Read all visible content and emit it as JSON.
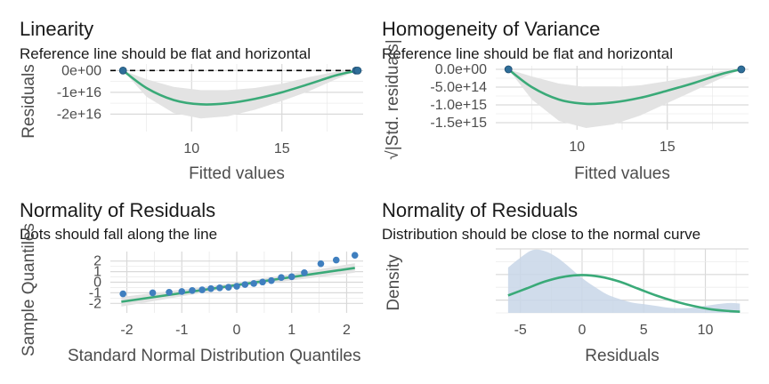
{
  "colors": {
    "curve": "#3aaa78",
    "band": "#e3e3e3",
    "points": "#2f6e99",
    "qq_points": "#3f7fbf",
    "density_fill": "#c8d6e8",
    "reference": "#000000"
  },
  "chart_data": [
    {
      "type": "scatter",
      "panel": "linearity",
      "title": "Linearity",
      "subtitle": "Reference line should be flat and horizontal",
      "xlabel": "Fitted values",
      "ylabel": "Residuals",
      "xlim": [
        5.5,
        19.5
      ],
      "ylim": [
        -2.8e+16,
        3000000000000000.0
      ],
      "x_ticks": [
        10,
        15
      ],
      "x_tick_labels": [
        "10",
        "15"
      ],
      "y_ticks": [
        0,
        -1e+16,
        -2e+16
      ],
      "y_tick_labels": [
        "0e+00",
        "-1e+16",
        "-2e+16"
      ],
      "reference_line": 0,
      "points": [
        {
          "x": 6.2,
          "y": 0
        },
        {
          "x": 19.1,
          "y": 0
        },
        {
          "x": 19.2,
          "y": 0
        }
      ],
      "smooth": [
        {
          "x": 6.2,
          "y": 0
        },
        {
          "x": 7.5,
          "y": -8000000000000000.0
        },
        {
          "x": 9.0,
          "y": -1.35e+16
        },
        {
          "x": 10.5,
          "y": -1.55e+16
        },
        {
          "x": 12.0,
          "y": -1.5e+16
        },
        {
          "x": 13.5,
          "y": -1.3e+16
        },
        {
          "x": 15.0,
          "y": -1e+16
        },
        {
          "x": 16.5,
          "y": -6200000000000000.0
        },
        {
          "x": 18.0,
          "y": -2200000000000000.0
        },
        {
          "x": 19.2,
          "y": 0
        }
      ],
      "band": [
        {
          "x": 6.2,
          "lo": 0,
          "hi": 0
        },
        {
          "x": 7.5,
          "lo": -1.2e+16,
          "hi": -4000000000000000.0
        },
        {
          "x": 9.0,
          "lo": -1.95e+16,
          "hi": -7500000000000000.0
        },
        {
          "x": 10.5,
          "lo": -2.2e+16,
          "hi": -9000000000000000.0
        },
        {
          "x": 12.0,
          "lo": -2.1e+16,
          "hi": -9000000000000000.0
        },
        {
          "x": 13.5,
          "lo": -1.8e+16,
          "hi": -8000000000000000.0
        },
        {
          "x": 15.0,
          "lo": -1.4e+16,
          "hi": -6000000000000000.0
        },
        {
          "x": 16.5,
          "lo": -9500000000000000.0,
          "hi": -3000000000000000.0
        },
        {
          "x": 18.0,
          "lo": -4000000000000000.0,
          "hi": -500000000000000.0
        },
        {
          "x": 19.2,
          "lo": 0,
          "hi": 0
        }
      ]
    },
    {
      "type": "scatter",
      "panel": "homogeneity",
      "title": "Homogeneity of Variance",
      "subtitle": "Reference line should be flat and horizontal",
      "xlabel": "Fitted values",
      "ylabel": "√|Std. residuals|",
      "xlim": [
        5.5,
        19.5
      ],
      "ylim": [
        -1700000000000000.0,
        100000000000000.0
      ],
      "x_ticks": [
        10,
        15
      ],
      "x_tick_labels": [
        "10",
        "15"
      ],
      "y_ticks": [
        0,
        -500000000000000.0,
        -1000000000000000.0,
        -1500000000000000.0
      ],
      "y_tick_labels": [
        "0.0e+00",
        "-5.0e+14",
        "-1.0e+15",
        "-1.5e+15"
      ],
      "points": [
        {
          "x": 6.2,
          "y": 0
        },
        {
          "x": 19.1,
          "y": 0
        }
      ],
      "smooth": [
        {
          "x": 6.2,
          "y": 0
        },
        {
          "x": 7.5,
          "y": -500000000000000.0
        },
        {
          "x": 9.0,
          "y": -850000000000000.0
        },
        {
          "x": 10.5,
          "y": -970000000000000.0
        },
        {
          "x": 12.0,
          "y": -930000000000000.0
        },
        {
          "x": 13.5,
          "y": -800000000000000.0
        },
        {
          "x": 15.0,
          "y": -600000000000000.0
        },
        {
          "x": 16.5,
          "y": -380000000000000.0
        },
        {
          "x": 18.0,
          "y": -130000000000000.0
        },
        {
          "x": 19.1,
          "y": 0
        }
      ],
      "band": [
        {
          "x": 6.2,
          "lo": 0,
          "hi": 0
        },
        {
          "x": 7.5,
          "lo": -850000000000000.0,
          "hi": -200000000000000.0
        },
        {
          "x": 9.0,
          "lo": -1450000000000000.0,
          "hi": -400000000000000.0
        },
        {
          "x": 10.5,
          "lo": -1650000000000000.0,
          "hi": -500000000000000.0
        },
        {
          "x": 12.0,
          "lo": -1550000000000000.0,
          "hi": -500000000000000.0
        },
        {
          "x": 13.5,
          "lo": -1300000000000000.0,
          "hi": -450000000000000.0
        },
        {
          "x": 15.0,
          "lo": -950000000000000.0,
          "hi": -330000000000000.0
        },
        {
          "x": 16.5,
          "lo": -600000000000000.0,
          "hi": -200000000000000.0
        },
        {
          "x": 18.0,
          "lo": -250000000000000.0,
          "hi": -50000000000000.0
        },
        {
          "x": 19.1,
          "lo": 0,
          "hi": 0
        }
      ]
    },
    {
      "type": "scatter",
      "panel": "qq",
      "title": "Normality of Residuals",
      "subtitle": "Dots should fall along the line",
      "xlabel": "Standard Normal Distribution Quantiles",
      "ylabel": "Sample Quantiles",
      "xlim": [
        -2.3,
        2.3
      ],
      "ylim": [
        -2.9,
        2.9
      ],
      "x_ticks": [
        -2,
        -1,
        0,
        1,
        2
      ],
      "x_tick_labels": [
        "-2",
        "-1",
        "0",
        "1",
        "2"
      ],
      "y_ticks": [
        2,
        1,
        0,
        -1,
        -2
      ],
      "y_tick_labels": [
        "2",
        "1",
        "0",
        "-1",
        "-2"
      ],
      "points": [
        {
          "x": -2.07,
          "y": -1.1
        },
        {
          "x": -1.53,
          "y": -1.0
        },
        {
          "x": -1.23,
          "y": -0.95
        },
        {
          "x": -1.0,
          "y": -0.88
        },
        {
          "x": -0.81,
          "y": -0.78
        },
        {
          "x": -0.63,
          "y": -0.72
        },
        {
          "x": -0.47,
          "y": -0.6
        },
        {
          "x": -0.31,
          "y": -0.53
        },
        {
          "x": -0.15,
          "y": -0.48
        },
        {
          "x": 0.0,
          "y": -0.38
        },
        {
          "x": 0.15,
          "y": -0.22
        },
        {
          "x": 0.31,
          "y": -0.12
        },
        {
          "x": 0.47,
          "y": 0.02
        },
        {
          "x": 0.63,
          "y": 0.15
        },
        {
          "x": 0.81,
          "y": 0.45
        },
        {
          "x": 1.0,
          "y": 0.52
        },
        {
          "x": 1.23,
          "y": 0.9
        },
        {
          "x": 1.53,
          "y": 1.75
        },
        {
          "x": 1.81,
          "y": 2.1
        },
        {
          "x": 2.15,
          "y": 2.55
        }
      ],
      "line": [
        {
          "x": -2.1,
          "y": -1.85
        },
        {
          "x": 2.15,
          "y": 1.35
        }
      ],
      "band": [
        {
          "x": -2.1,
          "lo": -2.3,
          "hi": -1.4
        },
        {
          "x": 0,
          "lo": -0.45,
          "hi": -0.05
        },
        {
          "x": 2.15,
          "lo": 0.9,
          "hi": 1.8
        }
      ]
    },
    {
      "type": "area",
      "panel": "density",
      "title": "Normality of Residuals",
      "subtitle": "Distribution should be close to the normal curve",
      "xlabel": "Residuals",
      "ylabel": "Density",
      "xlim": [
        -7,
        13.5
      ],
      "ylim": [
        0,
        0.11
      ],
      "x_ticks": [
        -5,
        0,
        5,
        10
      ],
      "x_tick_labels": [
        "-5",
        "0",
        "5",
        "10"
      ],
      "empirical_density": [
        {
          "x": -6,
          "y": 0.078
        },
        {
          "x": -5,
          "y": 0.095
        },
        {
          "x": -4,
          "y": 0.108
        },
        {
          "x": -3,
          "y": 0.106
        },
        {
          "x": -2,
          "y": 0.095
        },
        {
          "x": -1,
          "y": 0.078
        },
        {
          "x": 0,
          "y": 0.06
        },
        {
          "x": 1,
          "y": 0.045
        },
        {
          "x": 2,
          "y": 0.032
        },
        {
          "x": 3,
          "y": 0.024
        },
        {
          "x": 4,
          "y": 0.018
        },
        {
          "x": 5,
          "y": 0.015
        },
        {
          "x": 6,
          "y": 0.012
        },
        {
          "x": 7,
          "y": 0.009
        },
        {
          "x": 8,
          "y": 0.008
        },
        {
          "x": 9,
          "y": 0.009
        },
        {
          "x": 10,
          "y": 0.012
        },
        {
          "x": 11,
          "y": 0.015
        },
        {
          "x": 12,
          "y": 0.017
        },
        {
          "x": 12.8,
          "y": 0.016
        }
      ],
      "normal_curve": [
        {
          "x": -6,
          "y": 0.03
        },
        {
          "x": -4.5,
          "y": 0.042
        },
        {
          "x": -3,
          "y": 0.054
        },
        {
          "x": -1.5,
          "y": 0.062
        },
        {
          "x": 0,
          "y": 0.065
        },
        {
          "x": 1.5,
          "y": 0.062
        },
        {
          "x": 3,
          "y": 0.054
        },
        {
          "x": 4.5,
          "y": 0.042
        },
        {
          "x": 6,
          "y": 0.03
        },
        {
          "x": 7.5,
          "y": 0.02
        },
        {
          "x": 9,
          "y": 0.012
        },
        {
          "x": 10.5,
          "y": 0.006
        },
        {
          "x": 12,
          "y": 0.003
        },
        {
          "x": 12.8,
          "y": 0.002
        }
      ]
    }
  ]
}
